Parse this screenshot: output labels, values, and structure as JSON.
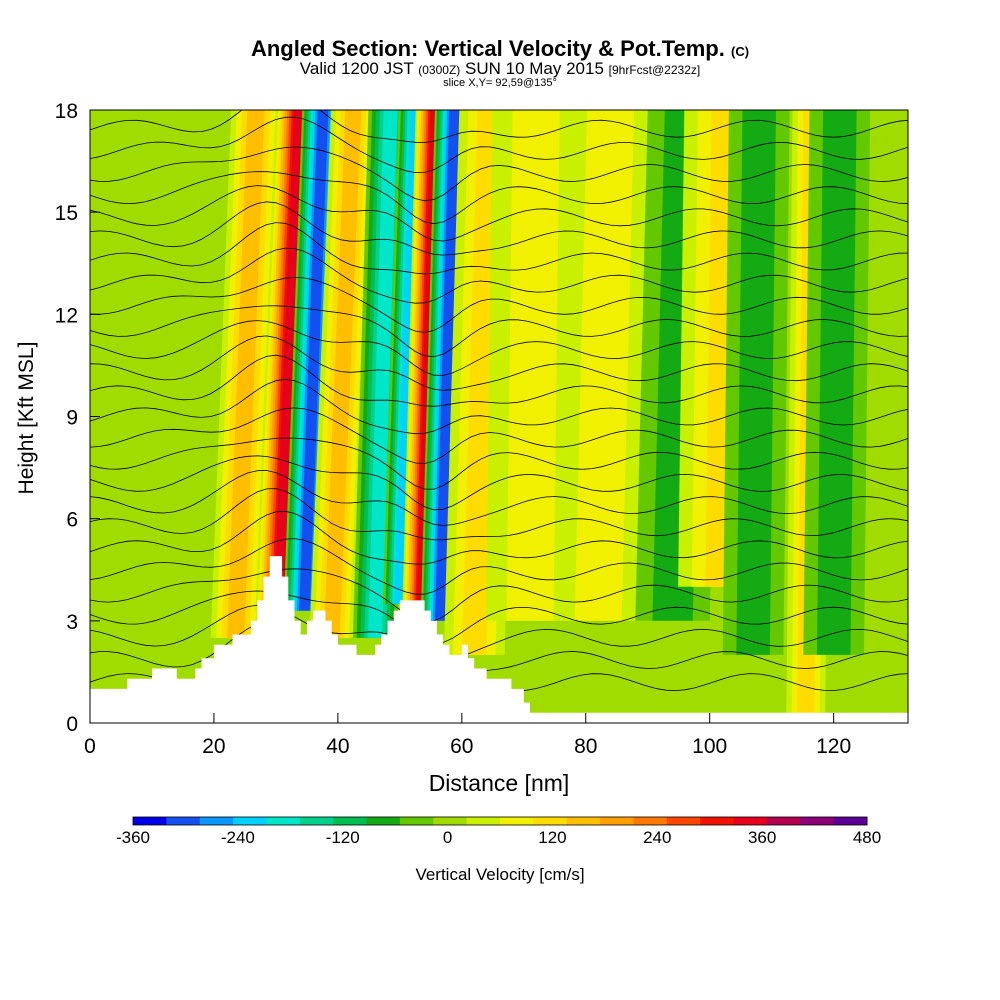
{
  "titles": {
    "main": "Angled Section: Vertical Velocity & Pot.Temp.",
    "main_tag": "(C)",
    "valid_a": "Valid 1200 JST",
    "valid_b": "(0300Z)",
    "valid_c": "SUN 10 May 2015",
    "valid_d": "[9hrFcst@2232z]",
    "slice": "slice X,Y= 92,59@135°"
  },
  "chart_data": {
    "type": "heatmap",
    "xlabel": "Distance [nm]",
    "ylabel": "Height [Kft MSL]",
    "xlim": [
      0,
      132
    ],
    "ylim": [
      0,
      18
    ],
    "x_ticks": [
      0,
      20,
      40,
      60,
      80,
      100,
      120
    ],
    "y_ticks": [
      0,
      3,
      6,
      9,
      12,
      15,
      18
    ],
    "colorbar": {
      "label": "Vertical Velocity [cm/s]",
      "ticks": [
        -360,
        -240,
        -120,
        0,
        120,
        240,
        360,
        480
      ],
      "bins": [
        -360,
        -320,
        -280,
        -240,
        -200,
        -160,
        -120,
        -80,
        -40,
        0,
        40,
        80,
        120,
        160,
        200,
        240,
        280,
        320,
        360,
        400,
        440,
        480
      ],
      "colors": [
        "#0000e8",
        "#1450f0",
        "#0a96ff",
        "#00d2ff",
        "#00e6c8",
        "#00d28c",
        "#00be50",
        "#14aa14",
        "#64c800",
        "#a0dc00",
        "#c8f000",
        "#f0f000",
        "#ffdc00",
        "#ffbe00",
        "#ffa000",
        "#ff7800",
        "#ff4600",
        "#f01400",
        "#e6001e",
        "#b40050",
        "#8c0078",
        "#5a0096"
      ]
    },
    "terrain_kft": [
      [
        0,
        1.0
      ],
      [
        5,
        1.0
      ],
      [
        6,
        1.3
      ],
      [
        9,
        1.3
      ],
      [
        10,
        1.6
      ],
      [
        13,
        1.6
      ],
      [
        14,
        1.3
      ],
      [
        16,
        1.3
      ],
      [
        17,
        1.6
      ],
      [
        18,
        1.9
      ],
      [
        19,
        1.9
      ],
      [
        20,
        2.3
      ],
      [
        22,
        2.3
      ],
      [
        23,
        2.6
      ],
      [
        25,
        2.6
      ],
      [
        26,
        3.0
      ],
      [
        27,
        3.6
      ],
      [
        28,
        4.3
      ],
      [
        29,
        4.9
      ],
      [
        30,
        4.9
      ],
      [
        31,
        4.3
      ],
      [
        32,
        3.6
      ],
      [
        33,
        3.0
      ],
      [
        34,
        2.6
      ],
      [
        35,
        3.0
      ],
      [
        36,
        3.3
      ],
      [
        38,
        3.0
      ],
      [
        39,
        2.6
      ],
      [
        40,
        2.3
      ],
      [
        42,
        2.3
      ],
      [
        43,
        2.0
      ],
      [
        45,
        2.0
      ],
      [
        46,
        2.3
      ],
      [
        47,
        2.6
      ],
      [
        48,
        3.0
      ],
      [
        49,
        3.3
      ],
      [
        50,
        3.6
      ],
      [
        53,
        3.6
      ],
      [
        54,
        3.3
      ],
      [
        55,
        3.0
      ],
      [
        56,
        2.6
      ],
      [
        57,
        2.3
      ],
      [
        58,
        2.0
      ],
      [
        60,
        2.3
      ],
      [
        61,
        1.9
      ],
      [
        62,
        1.6
      ],
      [
        63,
        1.6
      ],
      [
        64,
        1.3
      ],
      [
        67,
        1.3
      ],
      [
        68,
        1.0
      ],
      [
        70,
        0.6
      ],
      [
        71,
        0.3
      ],
      [
        132,
        0.3
      ]
    ],
    "velocity_features": [
      {
        "x": 23.5,
        "x_top": 26.8,
        "width_nm": 1.6,
        "y_bottom": 2.5,
        "y_top": 18,
        "w": 170
      },
      {
        "x": 30.5,
        "x_top": 33.8,
        "width_nm": 1.5,
        "y_bottom": 3.3,
        "y_top": 18,
        "w": 390
      },
      {
        "x": 34.6,
        "x_top": 37.6,
        "width_nm": 1.3,
        "y_bottom": 3.3,
        "y_top": 18,
        "w": -320
      },
      {
        "x": 39.0,
        "x_top": 42.5,
        "width_nm": 1.4,
        "y_bottom": 2.5,
        "y_top": 18,
        "w": 170
      },
      {
        "x": 46.0,
        "x_top": 48.5,
        "width_nm": 1.4,
        "y_bottom": 2.5,
        "y_top": 18,
        "w": -220
      },
      {
        "x": 50.0,
        "x_top": 52.5,
        "width_nm": 1.0,
        "y_bottom": 3.5,
        "y_top": 18,
        "w": -250
      },
      {
        "x": 53.5,
        "x_top": 55.7,
        "width_nm": 1.2,
        "y_bottom": 3.0,
        "y_top": 18,
        "w": 390
      },
      {
        "x": 56.5,
        "x_top": 58.8,
        "width_nm": 1.2,
        "y_bottom": 3.0,
        "y_top": 18,
        "w": -340
      },
      {
        "x": 62.0,
        "x_top": 64.5,
        "width_nm": 2.0,
        "y_bottom": 2.0,
        "y_top": 18,
        "w": 130
      },
      {
        "x": 71.0,
        "x_top": 72.0,
        "width_nm": 3.0,
        "y_bottom": 3.0,
        "y_top": 18,
        "w": 110
      },
      {
        "x": 82.0,
        "x_top": 84.0,
        "width_nm": 3.0,
        "y_bottom": 3.0,
        "y_top": 18,
        "w": 100
      },
      {
        "x": 94.0,
        "x_top": 96.0,
        "width_nm": 2.5,
        "y_bottom": 3.0,
        "y_top": 18,
        "w": -90
      },
      {
        "x": 102.0,
        "x_top": 103.0,
        "width_nm": 3.0,
        "y_bottom": 4.0,
        "y_top": 18,
        "w": 120
      },
      {
        "x": 107.0,
        "x_top": 108.0,
        "width_nm": 2.0,
        "y_bottom": 2.0,
        "y_top": 18,
        "w": -90
      },
      {
        "x": 115.5,
        "x_top": 116.5,
        "width_nm": 1.2,
        "y_bottom": 0.3,
        "y_top": 18,
        "w": 150
      },
      {
        "x": 120.0,
        "x_top": 121.0,
        "width_nm": 2.0,
        "y_bottom": 2.0,
        "y_top": 18,
        "w": -90
      }
    ]
  }
}
